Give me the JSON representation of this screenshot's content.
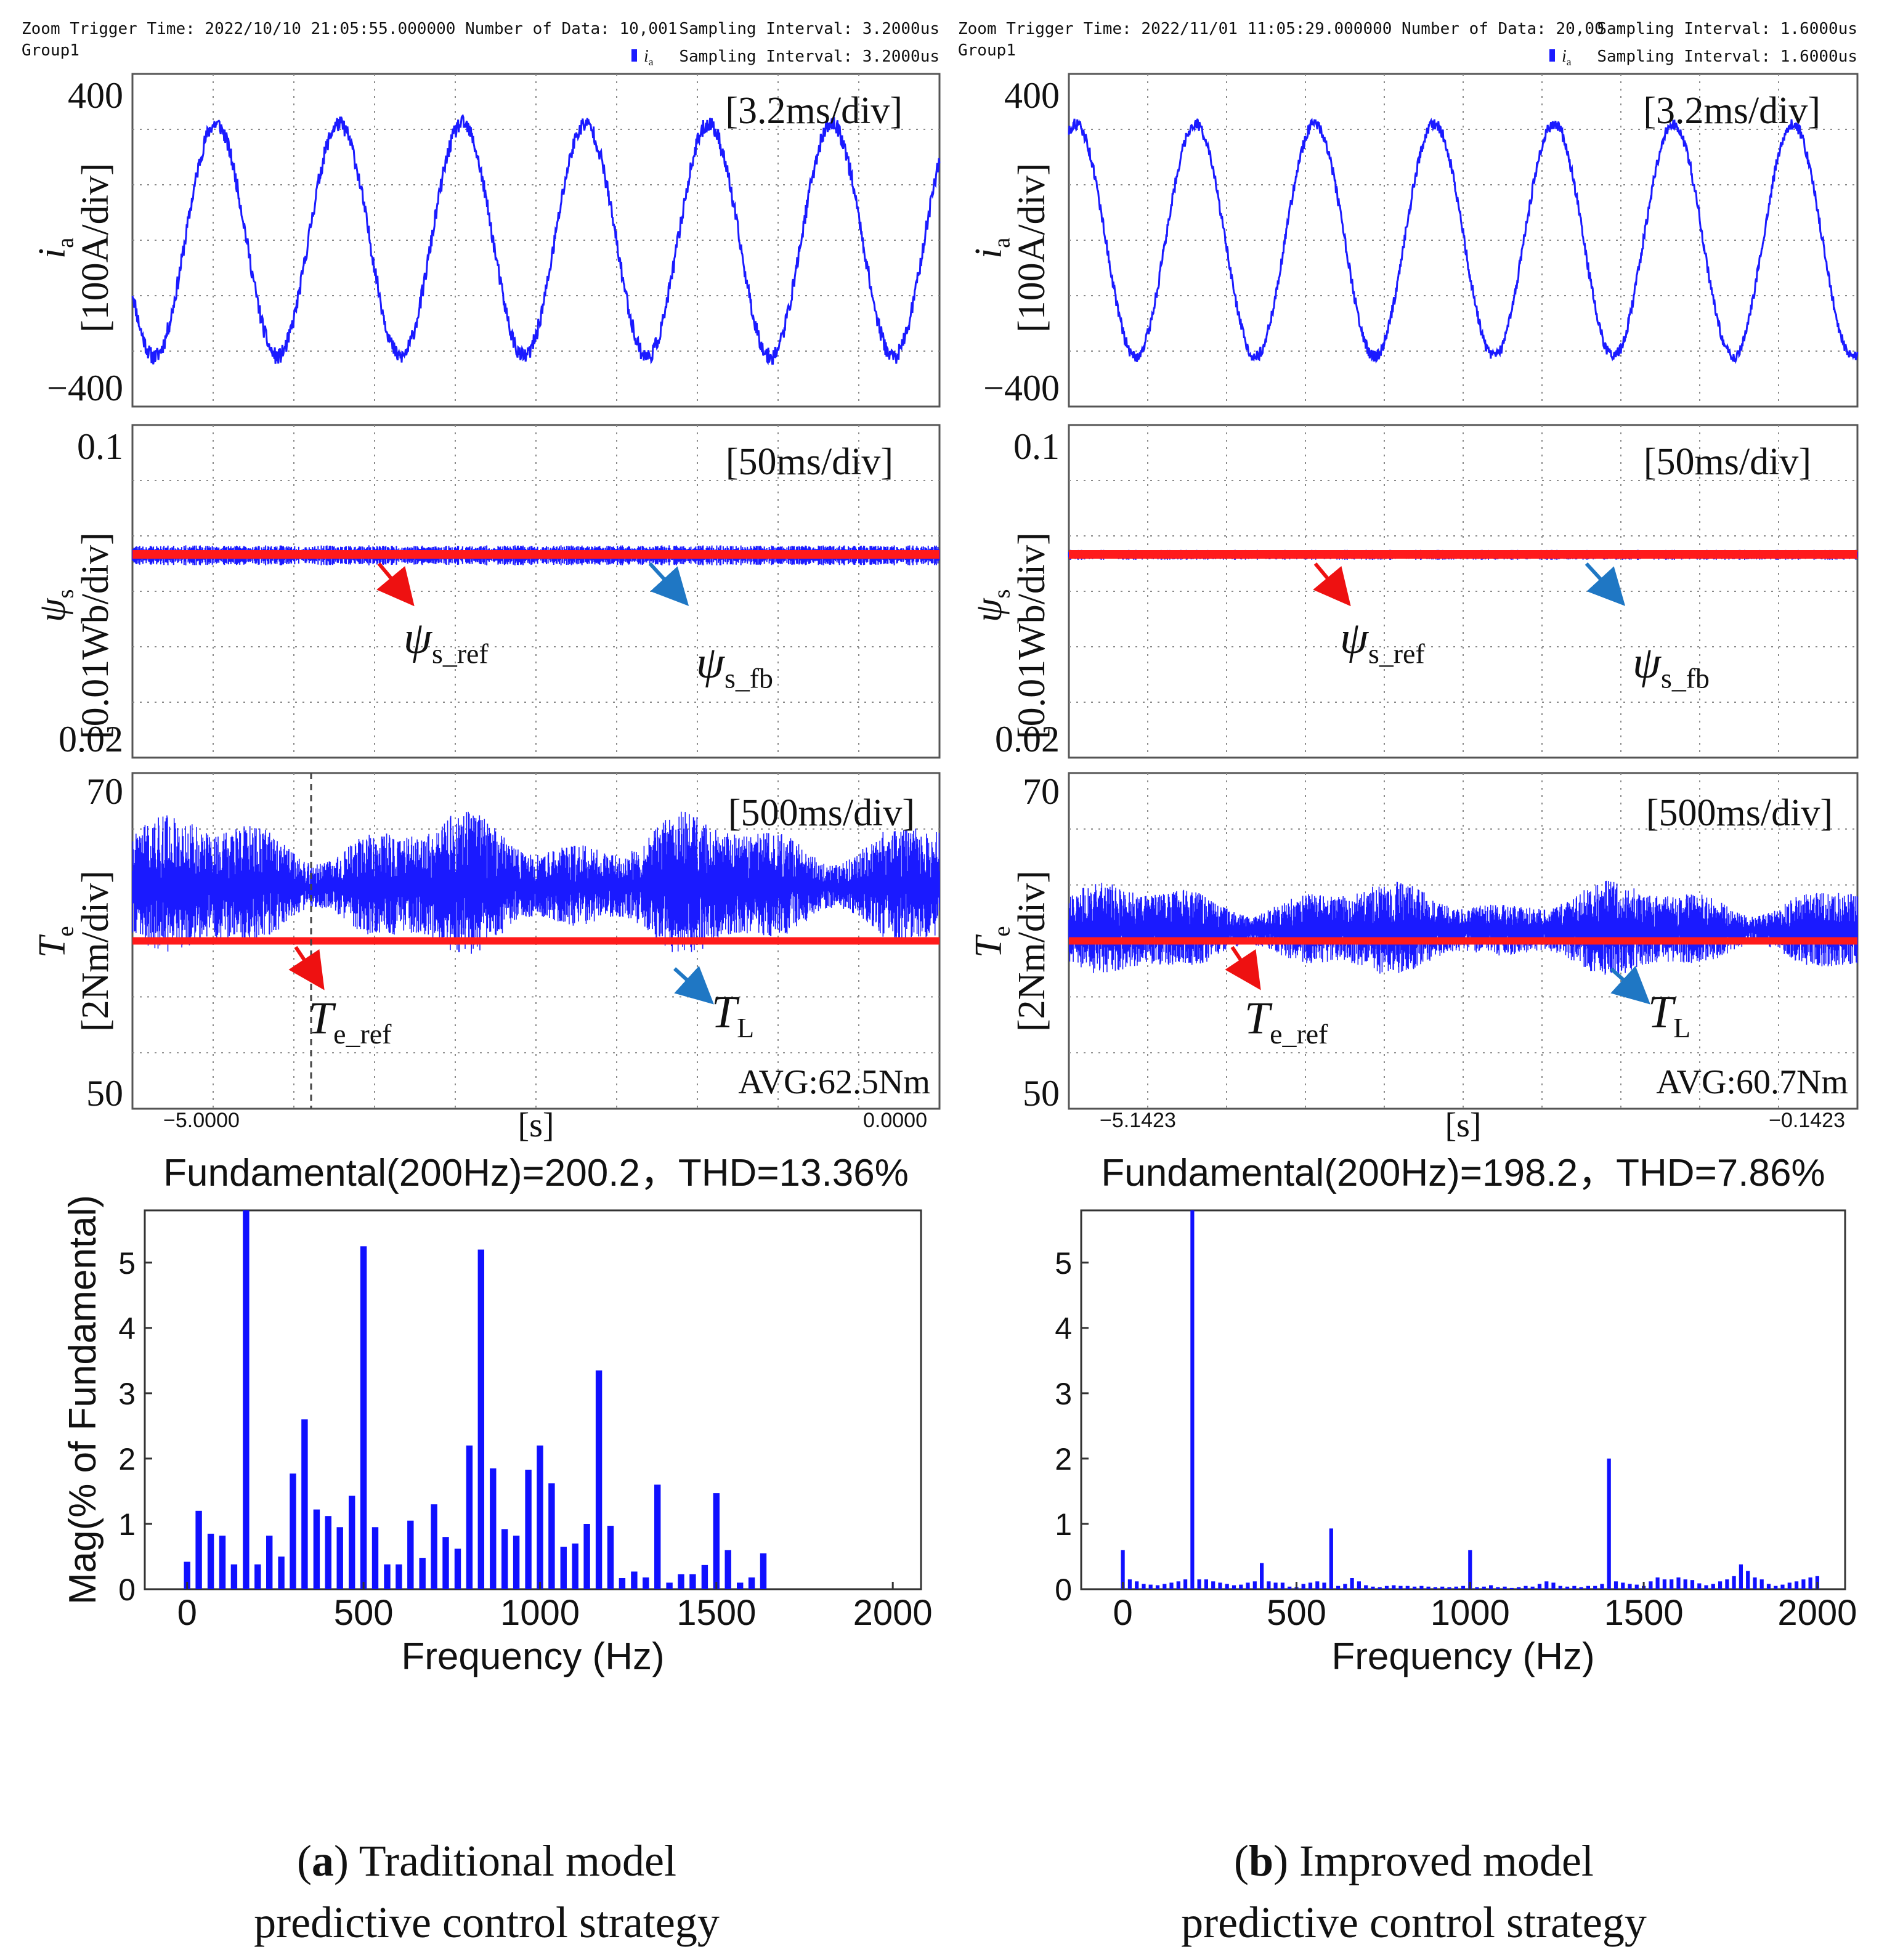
{
  "colors": {
    "trace": "#1a1aff",
    "reference": "#ff1a1a",
    "arrow_red": "#ee1111",
    "arrow_blue": "#1f77c4",
    "bar": "#1010ff",
    "grid": "#8a8a8a",
    "frame": "#555555"
  },
  "panels": [
    {
      "id": "a",
      "header": {
        "trigger": "Zoom Trigger Time: 2022/10/10 21:05:55.000000",
        "group": "Group1",
        "number_of_data": "Number of Data: 10,001",
        "sampling_interval_1": "Sampling Interval:   3.2000us",
        "sampling_var": "i",
        "sampling_var_sub": "a",
        "sampling_interval_2": "Sampling Interval:   3.2000us"
      },
      "current": {
        "timescale": "[3.2ms/div]",
        "ymax": "400",
        "ymin": "−400",
        "ylabel_sym": "i",
        "ylabel_sub": "a",
        "ylabel_unit": "[100A/div]",
        "amplitude": 0.7,
        "cycles": 6.55,
        "phase": 3.6,
        "noise": 0.05
      },
      "flux": {
        "timescale": "[50ms/div]",
        "ymax": "0.1",
        "ymin": "0.02",
        "ylabel_sym": "ψ",
        "ylabel_sub": "s",
        "ylabel_unit": "[0.01Wb/div]",
        "level": 0.5,
        "ripple": 0.12,
        "ref_label": "ψ",
        "ref_sub": "s_ref",
        "fb_label": "ψ",
        "fb_sub": "s_fb"
      },
      "torque": {
        "timescale": "[500ms/div]",
        "ymax": "70",
        "ymin": "50",
        "ylabel_sym": "T",
        "ylabel_sub": "e",
        "ylabel_unit": "[2Nm/div]",
        "ref_level": 0.5,
        "band_center": 0.34,
        "band_half": 0.15,
        "ref_label": "T",
        "ref_sub": "e_ref",
        "load_label": "T",
        "load_sub": "L",
        "avg": "AVG:62.5Nm",
        "cursor": true
      },
      "time_axis": {
        "start": "−5.0000",
        "unit": "[s]",
        "end": "0.0000"
      },
      "fft": {
        "title": "Fundamental(200Hz)=200.2，THD=13.36%",
        "chart_data": {
          "type": "bar",
          "title": "Fundamental(200Hz)=200.2，THD=13.36%",
          "xlabel": "Frequency (Hz)",
          "ylabel": "Mag(% of Fundamental)",
          "xlim": [
            -120,
            2080
          ],
          "ylim": [
            0,
            5.8
          ],
          "xticks": [
            "0",
            "500",
            "1000",
            "1500",
            "2000"
          ],
          "yticks": [
            "0",
            "1",
            "2",
            "3",
            "4",
            "5"
          ],
          "x": [
            0,
            33,
            67,
            100,
            133,
            167,
            200,
            233,
            267,
            300,
            333,
            367,
            400,
            433,
            467,
            500,
            533,
            567,
            600,
            633,
            667,
            700,
            733,
            767,
            800,
            833,
            867,
            900,
            933,
            967,
            1000,
            1033,
            1067,
            1100,
            1133,
            1167,
            1200,
            1233,
            1267,
            1300,
            1333,
            1367,
            1400,
            1433,
            1467,
            1500,
            1533,
            1567,
            1600,
            1633,
            1667,
            1700,
            1733,
            1767,
            1800,
            1833,
            1867,
            1900,
            1933,
            1967,
            2000,
            2033
          ],
          "values": [
            0.42,
            1.2,
            0.85,
            0.82,
            0.38,
            6.0,
            0.38,
            0.82,
            0.5,
            1.77,
            2.6,
            1.22,
            1.12,
            0.95,
            1.43,
            5.25,
            0.95,
            0.38,
            0.38,
            1.05,
            0.48,
            1.3,
            0.8,
            0.62,
            2.2,
            5.2,
            1.85,
            0.92,
            0.82,
            1.83,
            2.2,
            1.62,
            0.65,
            0.7,
            1.0,
            3.35,
            0.97,
            0.17,
            0.27,
            0.18,
            1.6,
            0.1,
            0.23,
            0.23,
            0.37,
            1.47,
            0.6,
            0.1,
            0.18,
            0.55,
            0,
            0,
            0,
            0,
            0,
            0,
            0,
            0,
            0,
            0,
            0,
            0
          ]
        }
      },
      "caption": {
        "letter": "a",
        "line1_rest": ") Traditional model",
        "line2": "predictive control strategy"
      }
    },
    {
      "id": "b",
      "header": {
        "trigger": "Zoom Trigger Time: 2022/11/01 11:05:29.000000",
        "group": "Group1",
        "number_of_data": "Number of Data: 20,00",
        "sampling_interval_1": "Sampling Interval:   1.6000us",
        "sampling_var": "i",
        "sampling_var_sub": "a",
        "sampling_interval_2": "Sampling Interval:   1.6000us"
      },
      "current": {
        "timescale": "[3.2ms/div]",
        "ymax": "400",
        "ymin": "−400",
        "ylabel_sym": "i",
        "ylabel_sub": "a",
        "ylabel_unit": "[100A/div]",
        "amplitude": 0.7,
        "cycles": 6.6,
        "phase": 1.2,
        "noise": 0.035
      },
      "flux": {
        "timescale": "[50ms/div]",
        "ymax": "0.1",
        "ymin": "0.02",
        "ylabel_sym": "ψ",
        "ylabel_sub": "s",
        "ylabel_unit": "[0.01Wb/div]",
        "level": 0.5,
        "ripple": 0.06,
        "ref_label": "ψ",
        "ref_sub": "s_ref",
        "fb_label": "ψ",
        "fb_sub": "s_fb"
      },
      "torque": {
        "timescale": "[500ms/div]",
        "ymax": "70",
        "ymin": "50",
        "ylabel_sym": "T",
        "ylabel_sub": "e",
        "ylabel_unit": "[2Nm/div]",
        "ref_level": 0.5,
        "band_center": 0.47,
        "band_half": 0.1,
        "ref_label": "T",
        "ref_sub": "e_ref",
        "load_label": "T",
        "load_sub": "L",
        "avg": "AVG:60.7Nm",
        "cursor": false
      },
      "time_axis": {
        "start": "−5.1423",
        "unit": "[s]",
        "end": "−0.1423"
      },
      "fft": {
        "title": "Fundamental(200Hz)=198.2，THD=7.86%",
        "chart_data": {
          "type": "bar",
          "title": "Fundamental(200Hz)=198.2，THD=7.86%",
          "xlabel": "Frequency (Hz)",
          "ylabel": "",
          "xlim": [
            -120,
            2080
          ],
          "ylim": [
            0,
            5.8
          ],
          "xticks": [
            "0",
            "500",
            "1000",
            "1500",
            "2000"
          ],
          "yticks": [
            "0",
            "1",
            "2",
            "3",
            "4",
            "5"
          ],
          "x": [
            0,
            20,
            40,
            60,
            80,
            100,
            120,
            140,
            160,
            180,
            200,
            220,
            240,
            260,
            280,
            300,
            320,
            340,
            360,
            380,
            400,
            420,
            440,
            460,
            480,
            500,
            520,
            540,
            560,
            580,
            600,
            620,
            640,
            660,
            680,
            700,
            720,
            740,
            760,
            780,
            800,
            820,
            840,
            860,
            880,
            900,
            920,
            940,
            960,
            980,
            1000,
            1020,
            1040,
            1060,
            1080,
            1100,
            1120,
            1140,
            1160,
            1180,
            1200,
            1220,
            1240,
            1260,
            1280,
            1300,
            1320,
            1340,
            1360,
            1380,
            1400,
            1420,
            1440,
            1460,
            1480,
            1500,
            1520,
            1540,
            1560,
            1580,
            1600,
            1620,
            1640,
            1660,
            1680,
            1700,
            1720,
            1740,
            1760,
            1780,
            1800,
            1820,
            1840,
            1860,
            1880,
            1900,
            1920,
            1940,
            1960,
            1980,
            2000,
            2020,
            2040
          ],
          "values": [
            0.6,
            0.15,
            0.12,
            0.08,
            0.07,
            0.06,
            0.08,
            0.1,
            0.12,
            0.15,
            6.0,
            0.15,
            0.15,
            0.12,
            0.1,
            0.08,
            0.06,
            0.07,
            0.1,
            0.12,
            0.4,
            0.12,
            0.1,
            0.1,
            0.04,
            0.03,
            0.08,
            0.1,
            0.12,
            0.1,
            0.93,
            0.05,
            0.08,
            0.17,
            0.12,
            0.06,
            0.04,
            0.03,
            0.05,
            0.06,
            0.05,
            0.05,
            0.04,
            0.05,
            0.04,
            0.03,
            0.04,
            0.03,
            0.04,
            0.05,
            0.6,
            0.03,
            0.04,
            0.06,
            0.03,
            0.04,
            0.02,
            0.03,
            0.05,
            0.04,
            0.08,
            0.12,
            0.1,
            0.05,
            0.04,
            0.05,
            0.03,
            0.05,
            0.05,
            0.08,
            2.0,
            0.12,
            0.1,
            0.08,
            0.07,
            0.05,
            0.12,
            0.18,
            0.15,
            0.15,
            0.18,
            0.15,
            0.14,
            0.09,
            0.06,
            0.08,
            0.12,
            0.15,
            0.2,
            0.38,
            0.28,
            0.18,
            0.15,
            0.08,
            0.05,
            0.07,
            0.1,
            0.12,
            0.15,
            0.18,
            0.2,
            0,
            0
          ]
        }
      },
      "caption": {
        "letter": "b",
        "line1_rest": ") Improved model",
        "line2": "predictive control strategy"
      }
    }
  ]
}
